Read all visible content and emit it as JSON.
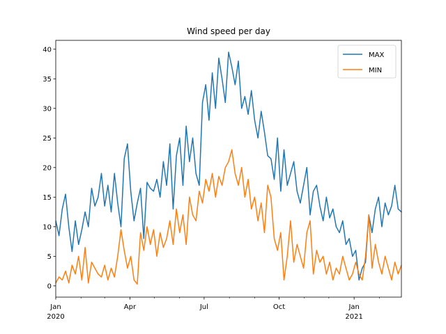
{
  "chart_data": {
    "type": "line",
    "title": "Wind speed per day",
    "xlabel": "",
    "ylabel": "",
    "x_range": [
      "2020-01-01",
      "2021-02-28"
    ],
    "ylim": [
      -1.9,
      41.5
    ],
    "grid": false,
    "legend_position": "top-right",
    "x_ticks": [
      {
        "date": "2020-01-01",
        "label": "Jan",
        "sublabel": "2020"
      },
      {
        "date": "2020-04-01",
        "label": "Apr",
        "sublabel": ""
      },
      {
        "date": "2020-07-01",
        "label": "Jul",
        "sublabel": ""
      },
      {
        "date": "2020-10-01",
        "label": "Oct",
        "sublabel": ""
      },
      {
        "date": "2021-01-01",
        "label": "Jan",
        "sublabel": "2021"
      }
    ],
    "y_ticks": [
      0,
      5,
      10,
      15,
      20,
      25,
      30,
      35,
      40
    ],
    "series": [
      {
        "name": "MAX",
        "color": "#1f77b4",
        "x": [
          "2020-01-01",
          "2020-01-05",
          "2020-01-09",
          "2020-01-13",
          "2020-01-17",
          "2020-01-21",
          "2020-01-25",
          "2020-01-29",
          "2020-02-02",
          "2020-02-06",
          "2020-02-10",
          "2020-02-14",
          "2020-02-18",
          "2020-02-22",
          "2020-02-26",
          "2020-03-01",
          "2020-03-05",
          "2020-03-09",
          "2020-03-13",
          "2020-03-17",
          "2020-03-21",
          "2020-03-25",
          "2020-03-29",
          "2020-04-02",
          "2020-04-06",
          "2020-04-10",
          "2020-04-14",
          "2020-04-18",
          "2020-04-22",
          "2020-04-26",
          "2020-04-30",
          "2020-05-04",
          "2020-05-08",
          "2020-05-12",
          "2020-05-16",
          "2020-05-20",
          "2020-05-24",
          "2020-05-28",
          "2020-06-01",
          "2020-06-05",
          "2020-06-09",
          "2020-06-13",
          "2020-06-17",
          "2020-06-21",
          "2020-06-25",
          "2020-06-29",
          "2020-07-03",
          "2020-07-07",
          "2020-07-11",
          "2020-07-15",
          "2020-07-19",
          "2020-07-23",
          "2020-07-27",
          "2020-07-31",
          "2020-08-04",
          "2020-08-08",
          "2020-08-12",
          "2020-08-16",
          "2020-08-20",
          "2020-08-24",
          "2020-08-28",
          "2020-09-01",
          "2020-09-05",
          "2020-09-09",
          "2020-09-13",
          "2020-09-17",
          "2020-09-21",
          "2020-09-25",
          "2020-09-29",
          "2020-10-03",
          "2020-10-07",
          "2020-10-11",
          "2020-10-15",
          "2020-10-19",
          "2020-10-23",
          "2020-10-27",
          "2020-10-31",
          "2020-11-04",
          "2020-11-08",
          "2020-11-12",
          "2020-11-16",
          "2020-11-20",
          "2020-11-24",
          "2020-11-28",
          "2020-12-02",
          "2020-12-06",
          "2020-12-10",
          "2020-12-14",
          "2020-12-18",
          "2020-12-22",
          "2020-12-26",
          "2020-12-30",
          "2021-01-03",
          "2021-01-07",
          "2021-01-11",
          "2021-01-15",
          "2021-01-19",
          "2021-01-23",
          "2021-01-27",
          "2021-01-31",
          "2021-02-04",
          "2021-02-08",
          "2021-02-12",
          "2021-02-16",
          "2021-02-20",
          "2021-02-24",
          "2021-02-28"
        ],
        "values": [
          11,
          8.5,
          13,
          15.5,
          10,
          5.8,
          11,
          7,
          9.5,
          12.5,
          10,
          16.5,
          13.5,
          15,
          19,
          13.5,
          17,
          12.5,
          19,
          14,
          10,
          21.5,
          24,
          16,
          11,
          14,
          16.5,
          8,
          17.5,
          16.5,
          16,
          18,
          15,
          21,
          17,
          24,
          13,
          22,
          25,
          17,
          27,
          21,
          25,
          19,
          17,
          31,
          34,
          28,
          36,
          30,
          38.5,
          35,
          31,
          39.5,
          37,
          34,
          38,
          30,
          32,
          29,
          33,
          28,
          25,
          29.5,
          26,
          22,
          21.5,
          18,
          25,
          16,
          23,
          17,
          19,
          21,
          16,
          14,
          17,
          20,
          12,
          16,
          17,
          13.5,
          11,
          15,
          11.5,
          13,
          10,
          9,
          11,
          7,
          8,
          5,
          6,
          1,
          3,
          4,
          12,
          9,
          13,
          15,
          10,
          14,
          12,
          13.5,
          17,
          13,
          12.5
        ]
      },
      {
        "name": "MIN",
        "color": "#ff7f0e",
        "x": [
          "2020-01-01",
          "2020-01-05",
          "2020-01-09",
          "2020-01-13",
          "2020-01-17",
          "2020-01-21",
          "2020-01-25",
          "2020-01-29",
          "2020-02-02",
          "2020-02-06",
          "2020-02-10",
          "2020-02-14",
          "2020-02-18",
          "2020-02-22",
          "2020-02-26",
          "2020-03-01",
          "2020-03-05",
          "2020-03-09",
          "2020-03-13",
          "2020-03-17",
          "2020-03-21",
          "2020-03-25",
          "2020-03-29",
          "2020-04-02",
          "2020-04-06",
          "2020-04-10",
          "2020-04-14",
          "2020-04-18",
          "2020-04-22",
          "2020-04-26",
          "2020-04-30",
          "2020-05-04",
          "2020-05-08",
          "2020-05-12",
          "2020-05-16",
          "2020-05-20",
          "2020-05-24",
          "2020-05-28",
          "2020-06-01",
          "2020-06-05",
          "2020-06-09",
          "2020-06-13",
          "2020-06-17",
          "2020-06-21",
          "2020-06-25",
          "2020-06-29",
          "2020-07-03",
          "2020-07-07",
          "2020-07-11",
          "2020-07-15",
          "2020-07-19",
          "2020-07-23",
          "2020-07-27",
          "2020-07-31",
          "2020-08-04",
          "2020-08-08",
          "2020-08-12",
          "2020-08-16",
          "2020-08-20",
          "2020-08-24",
          "2020-08-28",
          "2020-09-01",
          "2020-09-05",
          "2020-09-09",
          "2020-09-13",
          "2020-09-17",
          "2020-09-21",
          "2020-09-25",
          "2020-09-29",
          "2020-10-03",
          "2020-10-07",
          "2020-10-11",
          "2020-10-15",
          "2020-10-19",
          "2020-10-23",
          "2020-10-27",
          "2020-10-31",
          "2020-11-04",
          "2020-11-08",
          "2020-11-12",
          "2020-11-16",
          "2020-11-20",
          "2020-11-24",
          "2020-11-28",
          "2020-12-02",
          "2020-12-06",
          "2020-12-10",
          "2020-12-14",
          "2020-12-18",
          "2020-12-22",
          "2020-12-26",
          "2020-12-30",
          "2021-01-03",
          "2021-01-07",
          "2021-01-11",
          "2021-01-15",
          "2021-01-19",
          "2021-01-23",
          "2021-01-27",
          "2021-01-31",
          "2021-02-04",
          "2021-02-08",
          "2021-02-12",
          "2021-02-16",
          "2021-02-20",
          "2021-02-24",
          "2021-02-28"
        ],
        "values": [
          0.5,
          1.5,
          1,
          2.5,
          0.5,
          3.5,
          2,
          5,
          1,
          6.5,
          0.5,
          4,
          3,
          2,
          1.5,
          3.5,
          1,
          3,
          1.5,
          5,
          9.5,
          6,
          3,
          5,
          1,
          0.3,
          9,
          6,
          10,
          7,
          9.5,
          5,
          9,
          6.5,
          8,
          11,
          7,
          13,
          9,
          12,
          7,
          15,
          12,
          11,
          16,
          14,
          18,
          16,
          19,
          15,
          18.5,
          17,
          20,
          21,
          23,
          19,
          17,
          20,
          15,
          18,
          13,
          15,
          11,
          14,
          9,
          17,
          15,
          8,
          6,
          9,
          1,
          5,
          11,
          4,
          7,
          5,
          3,
          9,
          11,
          2,
          6,
          4,
          5,
          2,
          4,
          1,
          3,
          2,
          5,
          3,
          1,
          2,
          4,
          2,
          1,
          5,
          12,
          3,
          7,
          4,
          2,
          5,
          3,
          1,
          4,
          2,
          3.5
        ]
      }
    ]
  }
}
